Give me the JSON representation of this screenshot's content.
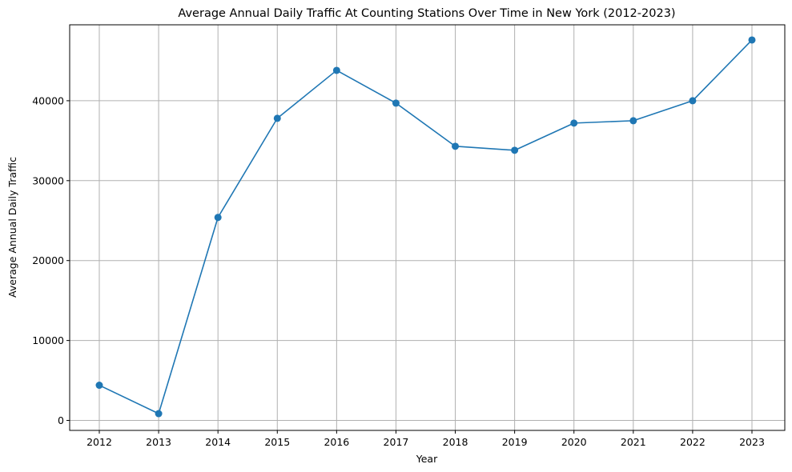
{
  "chart_data": {
    "type": "line",
    "title": "Average Annual Daily Traffic At Counting Stations Over Time in New York (2012-2023)",
    "xlabel": "Year",
    "ylabel": "Average Annual Daily Traffic",
    "x": [
      "2012",
      "2013",
      "2014",
      "2015",
      "2016",
      "2017",
      "2018",
      "2019",
      "2020",
      "2021",
      "2022",
      "2023"
    ],
    "series": [
      {
        "values": [
          4400,
          850,
          25400,
          37800,
          43800,
          39700,
          34300,
          33800,
          37200,
          37500,
          40000,
          47600
        ],
        "color": "#1f77b4",
        "marker": "circle"
      }
    ],
    "ylim": [
      -1250,
      49500
    ],
    "yticks": [
      0,
      10000,
      20000,
      30000,
      40000
    ],
    "ytick_labels": [
      "0",
      "10000",
      "20000",
      "30000",
      "40000"
    ],
    "grid": true
  }
}
